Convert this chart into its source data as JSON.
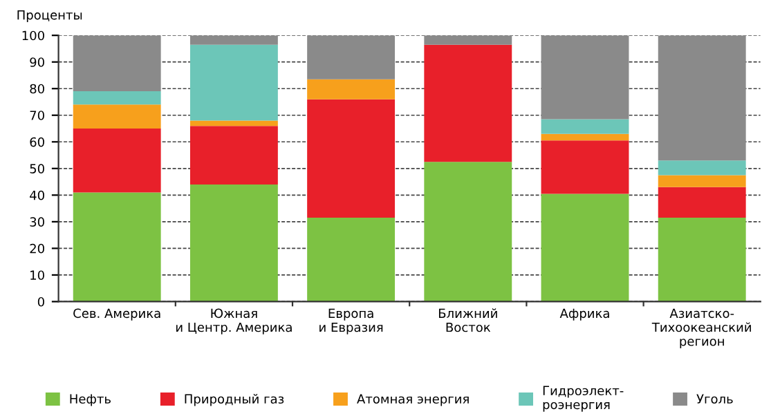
{
  "chart_data": {
    "type": "bar",
    "stacked": true,
    "ylabel": "Проценты",
    "categories": [
      "Сев. Америка",
      "Южная\nи Центр. Америка",
      "Европа\nи Евразия",
      "Ближний\nВосток",
      "Африка",
      "Азиатско-\nТихоокеанский\nрегион"
    ],
    "series": [
      {
        "name": "Нефть",
        "color": "#7dc243",
        "values": [
          41,
          44,
          31.5,
          52.5,
          40.5,
          31.5
        ]
      },
      {
        "name": "Природный газ",
        "color": "#e8202a",
        "values": [
          24,
          22,
          44.5,
          44,
          20,
          11.5
        ]
      },
      {
        "name": "Атомная энергия",
        "color": "#f7a01c",
        "values": [
          9,
          2,
          7.5,
          0,
          2.5,
          4.5
        ]
      },
      {
        "name": "Гидроэлект-\nроэнергия",
        "color": "#6cc6b8",
        "values": [
          5,
          28.5,
          0,
          0,
          5.5,
          5.5
        ]
      },
      {
        "name": "Уголь",
        "color": "#8a8a8a",
        "values": [
          21,
          3.5,
          16.5,
          3.5,
          31.5,
          47
        ]
      }
    ],
    "ylim": [
      0,
      100
    ],
    "yticks": [
      0,
      10,
      20,
      30,
      40,
      50,
      60,
      70,
      80,
      90,
      100
    ],
    "grid": "y",
    "legend": "bottom"
  }
}
